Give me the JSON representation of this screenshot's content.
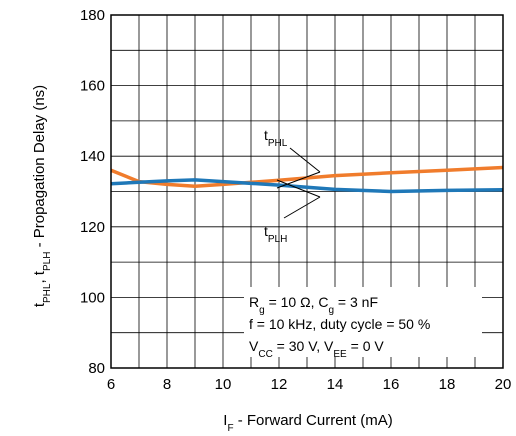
{
  "chart_data": {
    "type": "line",
    "xlim": [
      6,
      20
    ],
    "ylim": [
      80,
      180
    ],
    "x_ticks": [
      "6",
      "8",
      "10",
      "12",
      "14",
      "16",
      "18",
      "20"
    ],
    "y_ticks": [
      "80",
      "100",
      "120",
      "140",
      "160",
      "180"
    ],
    "xlabel": {
      "main": "I",
      "sub": "F",
      "rest": " - Forward Current (mA)"
    },
    "ylabel": {
      "p1": "t",
      "s1": "PHL",
      "p2": ", t",
      "s2": "PLH",
      "p3": " - Propagation Delay (ns)"
    },
    "grid": true,
    "series": [
      {
        "name": "tPHL",
        "color": "#f07c2c",
        "x": [
          6,
          7,
          8,
          9,
          10,
          12,
          14,
          16,
          18,
          20
        ],
        "y": [
          136,
          132.8,
          132,
          131.5,
          132,
          133.2,
          134.5,
          135.3,
          136,
          136.8
        ]
      },
      {
        "name": "tPLH",
        "color": "#1f78b8",
        "x": [
          6,
          7,
          8,
          9,
          10,
          12,
          14,
          16,
          18,
          20
        ],
        "y": [
          132.2,
          132.6,
          133,
          133.3,
          132.8,
          131.8,
          130.6,
          130,
          130.3,
          130.5
        ]
      }
    ],
    "series_labels": {
      "phl": {
        "main": "t",
        "sub": "PHL"
      },
      "plh": {
        "main": "t",
        "sub": "PLH"
      }
    },
    "conditions": {
      "line1": {
        "a": "R",
        "a_sub": "g",
        "b": " = 10 Ω, C",
        "b_sub": "g",
        "c": " = 3 nF"
      },
      "line2": "f = 10 kHz, duty cycle = 50 %",
      "line3": {
        "a": "V",
        "a_sub": "CC",
        "b": " = 30 V, V",
        "b_sub": "EE",
        "c": " = 0 V"
      }
    }
  }
}
